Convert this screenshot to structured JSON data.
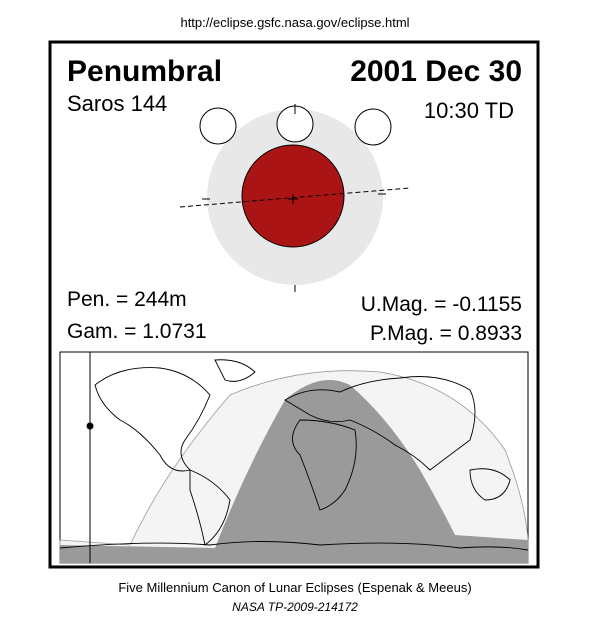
{
  "header": {
    "url": "http://eclipse.gsfc.nasa.gov/eclipse.html"
  },
  "panel": {
    "title": "Penumbral",
    "date": "2001 Dec 30",
    "saros": "Saros 144",
    "time": "10:30 TD",
    "pen": "Pen. = 244m",
    "gam": "Gam. = 1.0731",
    "umag": "U.Mag. = -0.1155",
    "pmag": "P.Mag. = 0.8933"
  },
  "footer": {
    "line1": "Five Millennium Canon of Lunar Eclipses (Espenak & Meeus)",
    "line2": "NASA TP-2009-214172"
  }
}
